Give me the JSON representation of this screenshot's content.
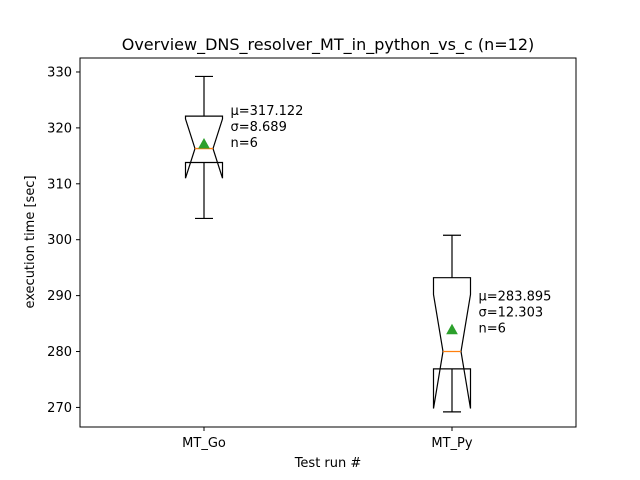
{
  "chart_data": {
    "type": "box",
    "title": "Overview_DNS_resolver_MT_in_python_vs_c (n=12)",
    "xlabel": "Test run #",
    "ylabel": "execution time [sec]",
    "categories": [
      "MT_Go",
      "MT_Py"
    ],
    "ylim": [
      266.5,
      332.5
    ],
    "yticks": [
      270,
      280,
      290,
      300,
      310,
      320,
      330
    ],
    "notched": true,
    "grid": false,
    "legend": "none",
    "boxes": [
      {
        "label": "MT_Go",
        "whisker_low": 303.8,
        "q1": 313.8,
        "median": 316.3,
        "q3": 322.1,
        "whisker_high": 329.2,
        "notch_low": 311.0,
        "notch_high": 321.6,
        "mean": 317.122,
        "annotation": [
          "μ=317.122",
          "σ=8.689",
          "n=6"
        ]
      },
      {
        "label": "MT_Py",
        "whisker_low": 269.2,
        "q1": 276.9,
        "median": 280.0,
        "q3": 293.2,
        "whisker_high": 300.8,
        "notch_low": 269.8,
        "notch_high": 290.2,
        "mean": 283.895,
        "annotation": [
          "μ=283.895",
          "σ=12.303",
          "n=6"
        ]
      }
    ],
    "colors": {
      "box": "#000000",
      "median": "#ff7f0e",
      "mean_marker": "#2ca02c"
    }
  }
}
